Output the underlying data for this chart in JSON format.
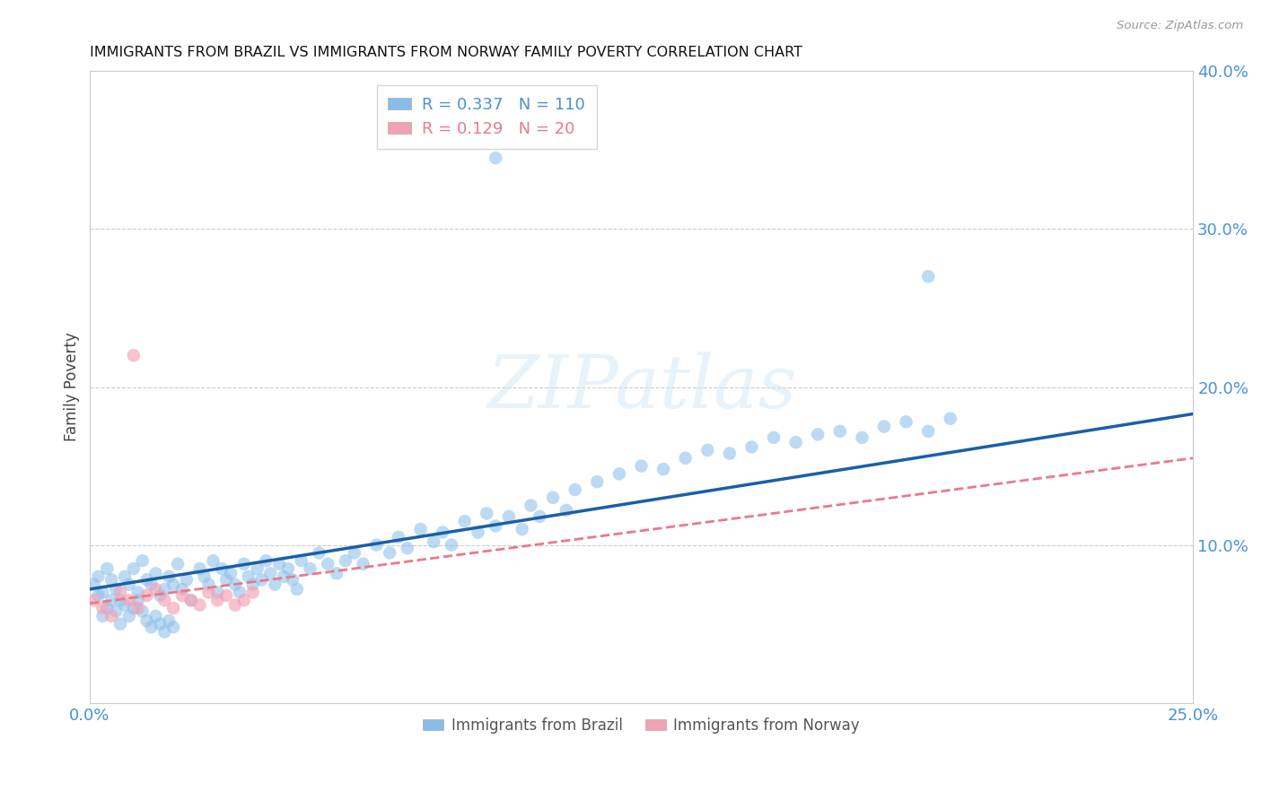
{
  "title": "IMMIGRANTS FROM BRAZIL VS IMMIGRANTS FROM NORWAY FAMILY POVERTY CORRELATION CHART",
  "source": "Source: ZipAtlas.com",
  "ylabel": "Family Poverty",
  "x_min": 0.0,
  "x_max": 0.25,
  "y_min": 0.0,
  "y_max": 0.4,
  "right_yticks": [
    0.0,
    0.1,
    0.2,
    0.3,
    0.4
  ],
  "right_yticklabels": [
    "",
    "10.0%",
    "20.0%",
    "30.0%",
    "40.0%"
  ],
  "x_ticks_pos": [
    0.0,
    0.05,
    0.1,
    0.15,
    0.2,
    0.25
  ],
  "x_tick_labels": [
    "0.0%",
    "",
    "",
    "",
    "",
    "25.0%"
  ],
  "brazil_R": 0.337,
  "brazil_N": 110,
  "norway_R": 0.129,
  "norway_N": 20,
  "brazil_color": "#87bde8",
  "norway_color": "#f4a0b5",
  "brazil_line_color": "#1a5fa8",
  "norway_line_color": "#e87a8a",
  "watermark": "ZIPatlas",
  "brazil_line_x0": 0.0,
  "brazil_line_y0": 0.072,
  "brazil_line_x1": 0.25,
  "brazil_line_y1": 0.183,
  "norway_line_x0": 0.0,
  "norway_line_y0": 0.063,
  "norway_line_x1": 0.25,
  "norway_line_y1": 0.155,
  "brazil_x": [
    0.001,
    0.002,
    0.003,
    0.004,
    0.005,
    0.006,
    0.007,
    0.008,
    0.009,
    0.01,
    0.011,
    0.012,
    0.013,
    0.014,
    0.015,
    0.016,
    0.017,
    0.018,
    0.019,
    0.02,
    0.021,
    0.022,
    0.023,
    0.025,
    0.026,
    0.027,
    0.028,
    0.029,
    0.03,
    0.031,
    0.032,
    0.033,
    0.034,
    0.035,
    0.036,
    0.037,
    0.038,
    0.039,
    0.04,
    0.041,
    0.042,
    0.043,
    0.044,
    0.045,
    0.046,
    0.047,
    0.048,
    0.05,
    0.052,
    0.054,
    0.056,
    0.058,
    0.06,
    0.062,
    0.065,
    0.068,
    0.07,
    0.072,
    0.075,
    0.078,
    0.08,
    0.082,
    0.085,
    0.088,
    0.09,
    0.092,
    0.095,
    0.098,
    0.1,
    0.102,
    0.105,
    0.108,
    0.11,
    0.115,
    0.12,
    0.125,
    0.13,
    0.135,
    0.14,
    0.145,
    0.15,
    0.155,
    0.16,
    0.165,
    0.17,
    0.175,
    0.18,
    0.185,
    0.19,
    0.195,
    0.002,
    0.003,
    0.004,
    0.005,
    0.006,
    0.007,
    0.008,
    0.009,
    0.01,
    0.011,
    0.012,
    0.013,
    0.014,
    0.015,
    0.016,
    0.017,
    0.018,
    0.019,
    0.092,
    0.19
  ],
  "brazil_y": [
    0.075,
    0.08,
    0.07,
    0.085,
    0.078,
    0.072,
    0.065,
    0.08,
    0.075,
    0.085,
    0.07,
    0.09,
    0.078,
    0.075,
    0.082,
    0.068,
    0.072,
    0.08,
    0.075,
    0.088,
    0.072,
    0.078,
    0.065,
    0.085,
    0.08,
    0.075,
    0.09,
    0.07,
    0.085,
    0.078,
    0.082,
    0.075,
    0.07,
    0.088,
    0.08,
    0.075,
    0.085,
    0.078,
    0.09,
    0.082,
    0.075,
    0.088,
    0.08,
    0.085,
    0.078,
    0.072,
    0.09,
    0.085,
    0.095,
    0.088,
    0.082,
    0.09,
    0.095,
    0.088,
    0.1,
    0.095,
    0.105,
    0.098,
    0.11,
    0.102,
    0.108,
    0.1,
    0.115,
    0.108,
    0.12,
    0.112,
    0.118,
    0.11,
    0.125,
    0.118,
    0.13,
    0.122,
    0.135,
    0.14,
    0.145,
    0.15,
    0.148,
    0.155,
    0.16,
    0.158,
    0.162,
    0.168,
    0.165,
    0.17,
    0.172,
    0.168,
    0.175,
    0.178,
    0.172,
    0.18,
    0.068,
    0.055,
    0.06,
    0.065,
    0.058,
    0.05,
    0.062,
    0.055,
    0.06,
    0.065,
    0.058,
    0.052,
    0.048,
    0.055,
    0.05,
    0.045,
    0.052,
    0.048,
    0.345,
    0.27
  ],
  "norway_x": [
    0.001,
    0.003,
    0.005,
    0.007,
    0.009,
    0.011,
    0.013,
    0.015,
    0.017,
    0.019,
    0.021,
    0.023,
    0.025,
    0.027,
    0.029,
    0.031,
    0.033,
    0.035,
    0.037,
    0.01
  ],
  "norway_y": [
    0.065,
    0.06,
    0.055,
    0.07,
    0.065,
    0.06,
    0.068,
    0.072,
    0.065,
    0.06,
    0.068,
    0.065,
    0.062,
    0.07,
    0.065,
    0.068,
    0.062,
    0.065,
    0.07,
    0.22
  ]
}
